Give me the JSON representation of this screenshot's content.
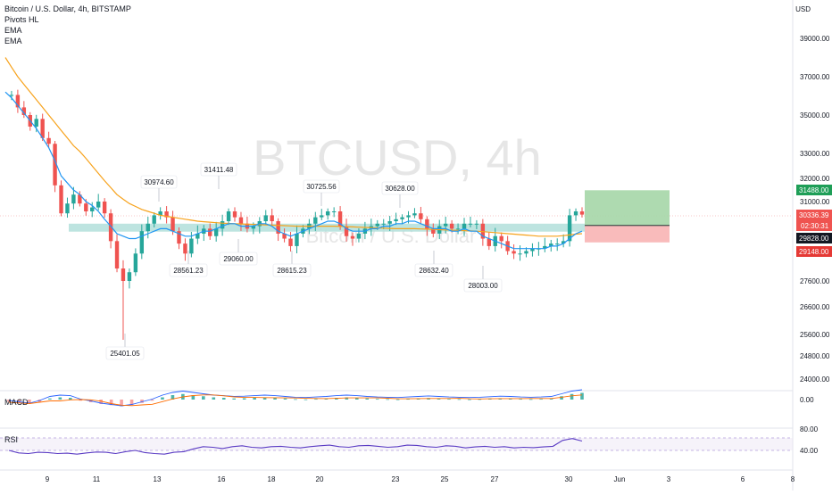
{
  "legend": {
    "symbol": "Bitcoin / U.S. Dollar, 4h, BITSTAMP",
    "indicator1": "Pivots HL",
    "indicator2": "EMA",
    "indicator3": "EMA"
  },
  "watermark": {
    "symbol": "BTCUSD, 4h",
    "name": "Bitcoin / U.S. Dollar"
  },
  "colors": {
    "up": "#26a69a",
    "down": "#ef5350",
    "ema_fast": "#2196f3",
    "ema_slow": "#f7a21b",
    "rsi": "#5b3cc4",
    "macd": "#2962ff",
    "signal": "#ff6d00",
    "support_zone": "#b2dfdb",
    "profit_zone": "#a5d6a7",
    "loss_zone": "#f8b4b4"
  },
  "chart_data": {
    "type": "candlestick",
    "currency": "USD",
    "y_axis_ticks": [
      39000,
      37000,
      35000,
      33000,
      32000,
      31000,
      30000,
      27600,
      26600,
      25600,
      24800,
      24000
    ],
    "x_axis_ticks": [
      "9",
      "11",
      "13",
      "16",
      "18",
      "20",
      "23",
      "25",
      "27",
      "30",
      "Jun",
      "3",
      "6",
      "8"
    ],
    "price_tags": {
      "take_profit": "31488.00",
      "last_price": "30336.39",
      "countdown": "02:30:31",
      "entry": "29828.00",
      "stop_loss": "29148.00"
    },
    "pivots_high": [
      "30974.60",
      "31411.48",
      "30725.56",
      "30628.00"
    ],
    "pivots_low": [
      "25401.05",
      "28561.23",
      "29060.00",
      "28615.23",
      "28632.40",
      "28003.00"
    ],
    "price_series": [
      36000,
      36050,
      35400,
      35000,
      34400,
      34800,
      33800,
      33500,
      31700,
      30400,
      30900,
      31300,
      30900,
      30500,
      30700,
      31000,
      30400,
      29200,
      28100,
      27600,
      27950,
      28700,
      29600,
      29900,
      30300,
      30500,
      30200,
      29600,
      29100,
      28700,
      29300,
      29500,
      29700,
      29400,
      29700,
      30000,
      30500,
      30200,
      29900,
      29700,
      29800,
      30000,
      30300,
      30000,
      29500,
      29300,
      29000,
      29500,
      29700,
      29900,
      30200,
      30300,
      30500,
      30500,
      29800,
      29400,
      29300,
      29500,
      29700,
      29800,
      29900,
      29900,
      30000,
      30100,
      30200,
      30300,
      30400,
      30100,
      29700,
      29500,
      29800,
      29900,
      29700,
      29700,
      29900,
      29900,
      29900,
      29300,
      29000,
      29400,
      29200,
      28800,
      28700,
      28700,
      28800,
      28900,
      28900,
      29000,
      29100,
      29100,
      29200,
      30300,
      30500,
      30336
    ],
    "ema_fast_values": [
      36200,
      35900,
      35500,
      35100,
      34700,
      34300,
      33800,
      33300,
      32700,
      32100,
      31800,
      31500,
      31300,
      31000,
      30800,
      30500,
      30100,
      29800,
      29500,
      29400,
      29300,
      29300,
      29400,
      29500,
      29600,
      29700,
      29700,
      29600,
      29500,
      29400,
      29400,
      29500,
      29600,
      29600,
      29700,
      29800,
      29900,
      29900,
      29800,
      29800,
      29800,
      29900,
      29900,
      29800,
      29600,
      29500,
      29400,
      29500,
      29600,
      29700,
      29800,
      29900,
      30000,
      30000,
      29900,
      29700,
      29600,
      29600,
      29600,
      29700,
      29700,
      29800,
      29800,
      29900,
      29900,
      30000,
      30000,
      29900,
      29800,
      29700,
      29700,
      29700,
      29600,
      29600,
      29700,
      29600,
      29600,
      29400,
      29300,
      29200,
      29100,
      29000,
      28900,
      28900,
      28900,
      28900,
      28900,
      28900,
      29000,
      29000,
      29100,
      29300,
      29500,
      29600
    ],
    "ema_slow_values": [
      38000,
      37500,
      37000,
      36600,
      36200,
      35800,
      35400,
      35000,
      34600,
      34200,
      33800,
      33400,
      33100,
      32800,
      32500,
      32200,
      31900,
      31600,
      31300,
      31100,
      30900,
      30750,
      30600,
      30500,
      30400,
      30300,
      30250,
      30200,
      30150,
      30100,
      30050,
      30000,
      29980,
      29960,
      29940,
      29920,
      29910,
      29900,
      29890,
      29880,
      29870,
      29860,
      29850,
      29840,
      29830,
      29820,
      29810,
      29800,
      29800,
      29800,
      29800,
      29800,
      29800,
      29800,
      29790,
      29780,
      29770,
      29760,
      29750,
      29740,
      29730,
      29720,
      29710,
      29700,
      29700,
      29700,
      29700,
      29690,
      29680,
      29670,
      29660,
      29650,
      29640,
      29630,
      29620,
      29610,
      29600,
      29580,
      29560,
      29540,
      29520,
      29500,
      29480,
      29460,
      29440,
      29420,
      29400,
      29400,
      29400,
      29400,
      29420,
      29450,
      29480,
      29500
    ],
    "macd": {
      "label": "MACD",
      "ticks": [
        "0.00"
      ],
      "histogram": [
        -1,
        -1.5,
        -2,
        -1,
        0.5,
        1,
        0.8,
        -0.5,
        -1.2,
        -2,
        -2.5,
        -3,
        -2.5,
        -1.5,
        -0.5,
        1,
        2,
        2.5,
        2,
        1.5,
        1,
        0.8,
        0.5,
        0.6,
        0.8,
        1,
        0.8,
        0.5,
        0.2,
        0.1,
        0.3,
        0.5,
        0.8,
        1,
        0.8,
        0.5,
        0.3,
        0.2,
        0.1,
        0.3,
        0.5,
        0.7,
        0.5,
        0.3,
        0.2,
        0.1,
        0.2,
        0.4,
        0.6,
        0.5,
        0.3,
        0.2,
        0.3,
        0.5,
        1.5,
        2.5,
        3
      ]
    },
    "rsi": {
      "label": "RSI",
      "ticks": [
        "80.00",
        "40.00"
      ],
      "values": [
        40,
        32,
        30,
        34,
        33,
        30,
        31,
        28,
        32,
        35,
        34,
        30,
        36,
        40,
        33,
        30,
        28,
        34,
        36,
        45,
        52,
        50,
        46,
        52,
        55,
        50,
        48,
        52,
        53,
        50,
        48,
        52,
        55,
        57,
        52,
        50,
        55,
        56,
        53,
        50,
        52,
        57,
        56,
        52,
        50,
        55,
        53,
        48,
        51,
        53,
        50,
        52,
        48,
        50,
        49,
        51,
        53,
        72,
        78,
        70
      ]
    }
  }
}
